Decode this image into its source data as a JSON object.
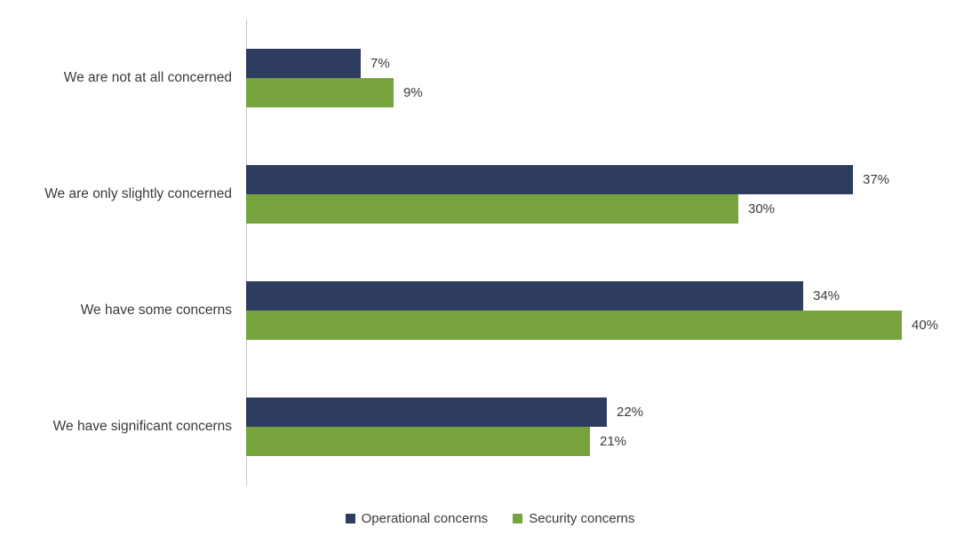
{
  "chart_data": {
    "type": "bar",
    "orientation": "horizontal",
    "title": "",
    "categories": [
      "We are not at all concerned",
      "We are only slightly concerned",
      "We have some concerns",
      "We have significant concerns"
    ],
    "series": [
      {
        "name": "Operational concerns",
        "color": "#2e3c5f",
        "values": [
          7,
          37,
          34,
          22
        ]
      },
      {
        "name": "Security concerns",
        "color": "#77a33e",
        "values": [
          9,
          30,
          40,
          21
        ]
      }
    ],
    "value_suffix": "%",
    "xlim": [
      0,
      40
    ],
    "data_labels": true,
    "grid": false,
    "legend_position": "bottom"
  },
  "colors": {
    "background": "#ffffff",
    "axis": "#c9c9c9",
    "text": "#3a3a3a"
  }
}
